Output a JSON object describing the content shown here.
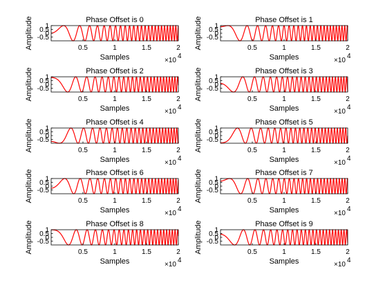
{
  "chart_data": [
    {
      "type": "line",
      "title": "Phase Offset is 0",
      "xlabel": "Samples",
      "ylabel": "Amplitude",
      "xlim": [
        0,
        20000
      ],
      "ylim": [
        -1,
        1
      ],
      "xticks": [
        5000,
        10000,
        15000,
        20000
      ],
      "xtick_labels": [
        "0.5",
        "1",
        "1.5",
        "2"
      ],
      "x_multiplier": "×10",
      "x_multiplier_exp": "4",
      "yticks": [
        1,
        0.5,
        0,
        -0.5
      ],
      "ytick_labels": [
        "1",
        "0.5",
        "0",
        "-0.5"
      ],
      "series": [
        {
          "color": "#ff0000",
          "signal": "linear chirp sin(2*pi*f(t)*t + phase), phase = 0",
          "phase": 0,
          "n_samples": 20000
        }
      ],
      "grid": false
    },
    {
      "type": "line",
      "title": "Phase Offset is 1",
      "xlabel": "Samples",
      "ylabel": "Amplitude",
      "xlim": [
        0,
        20000
      ],
      "ylim": [
        -1,
        1
      ],
      "xticks": [
        5000,
        10000,
        15000,
        20000
      ],
      "xtick_labels": [
        "0.5",
        "1",
        "1.5",
        "2"
      ],
      "x_multiplier": "×10",
      "x_multiplier_exp": "4",
      "yticks": [
        1,
        0.5,
        0,
        -0.5
      ],
      "ytick_labels": [
        "1",
        "0.5",
        "0",
        "-0.5"
      ],
      "series": [
        {
          "color": "#ff0000",
          "phase": 1,
          "n_samples": 20000
        }
      ],
      "grid": false
    },
    {
      "type": "line",
      "title": "Phase Offset is 2",
      "xlabel": "Samples",
      "ylabel": "Amplitude",
      "xlim": [
        0,
        20000
      ],
      "ylim": [
        -1,
        1
      ],
      "xticks": [
        5000,
        10000,
        15000,
        20000
      ],
      "xtick_labels": [
        "0.5",
        "1",
        "1.5",
        "2"
      ],
      "x_multiplier": "×10",
      "x_multiplier_exp": "4",
      "yticks": [
        1,
        0.5,
        0,
        -0.5
      ],
      "ytick_labels": [
        "1",
        "0.5",
        "0",
        "-0.5"
      ],
      "series": [
        {
          "color": "#ff0000",
          "phase": 2,
          "n_samples": 20000
        }
      ],
      "grid": false
    },
    {
      "type": "line",
      "title": "Phase Offset is 3",
      "xlabel": "Samples",
      "ylabel": "Amplitude",
      "xlim": [
        0,
        20000
      ],
      "ylim": [
        -1,
        1
      ],
      "xticks": [
        5000,
        10000,
        15000,
        20000
      ],
      "xtick_labels": [
        "0.5",
        "1",
        "1.5",
        "2"
      ],
      "x_multiplier": "×10",
      "x_multiplier_exp": "4",
      "yticks": [
        1,
        0.5,
        0,
        -0.5
      ],
      "ytick_labels": [
        "1",
        "0.5",
        "0",
        "-0.5"
      ],
      "series": [
        {
          "color": "#ff0000",
          "phase": 3,
          "n_samples": 20000
        }
      ],
      "grid": false
    },
    {
      "type": "line",
      "title": "Phase Offset is 4",
      "xlabel": "Samples",
      "ylabel": "Amplitude",
      "xlim": [
        0,
        20000
      ],
      "ylim": [
        -1,
        1
      ],
      "xticks": [
        5000,
        10000,
        15000,
        20000
      ],
      "xtick_labels": [
        "0.5",
        "1",
        "1.5",
        "2"
      ],
      "x_multiplier": "×10",
      "x_multiplier_exp": "4",
      "yticks": [
        1,
        0.5,
        0,
        -0.5
      ],
      "ytick_labels": [
        "1",
        "0.5",
        "0",
        "-0.5"
      ],
      "series": [
        {
          "color": "#ff0000",
          "phase": 4,
          "n_samples": 20000
        }
      ],
      "grid": false
    },
    {
      "type": "line",
      "title": "Phase Offset is 5",
      "xlabel": "Samples",
      "ylabel": "Amplitude",
      "xlim": [
        0,
        20000
      ],
      "ylim": [
        -1,
        1
      ],
      "xticks": [
        5000,
        10000,
        15000,
        20000
      ],
      "xtick_labels": [
        "0.5",
        "1",
        "1.5",
        "2"
      ],
      "x_multiplier": "×10",
      "x_multiplier_exp": "4",
      "yticks": [
        1,
        0.5,
        0,
        -0.5
      ],
      "ytick_labels": [
        "1",
        "0.5",
        "0",
        "-0.5"
      ],
      "series": [
        {
          "color": "#ff0000",
          "phase": 5,
          "n_samples": 20000
        }
      ],
      "grid": false
    },
    {
      "type": "line",
      "title": "Phase Offset is 6",
      "xlabel": "Samples",
      "ylabel": "Amplitude",
      "xlim": [
        0,
        20000
      ],
      "ylim": [
        -1,
        1
      ],
      "xticks": [
        5000,
        10000,
        15000,
        20000
      ],
      "xtick_labels": [
        "0.5",
        "1",
        "1.5",
        "2"
      ],
      "x_multiplier": "×10",
      "x_multiplier_exp": "4",
      "yticks": [
        1,
        0.5,
        0,
        -0.5
      ],
      "ytick_labels": [
        "1",
        "0.5",
        "0",
        "-0.5"
      ],
      "series": [
        {
          "color": "#ff0000",
          "phase": 6,
          "n_samples": 20000
        }
      ],
      "grid": false
    },
    {
      "type": "line",
      "title": "Phase Offset is 7",
      "xlabel": "Samples",
      "ylabel": "Amplitude",
      "xlim": [
        0,
        20000
      ],
      "ylim": [
        -1,
        1
      ],
      "xticks": [
        5000,
        10000,
        15000,
        20000
      ],
      "xtick_labels": [
        "0.5",
        "1",
        "1.5",
        "2"
      ],
      "x_multiplier": "×10",
      "x_multiplier_exp": "4",
      "yticks": [
        1,
        0.5,
        0,
        -0.5
      ],
      "ytick_labels": [
        "1",
        "0.5",
        "0",
        "-0.5"
      ],
      "series": [
        {
          "color": "#ff0000",
          "phase": 7,
          "n_samples": 20000
        }
      ],
      "grid": false
    },
    {
      "type": "line",
      "title": "Phase Offset is 8",
      "xlabel": "Samples",
      "ylabel": "Amplitude",
      "xlim": [
        0,
        20000
      ],
      "ylim": [
        -1,
        1
      ],
      "xticks": [
        5000,
        10000,
        15000,
        20000
      ],
      "xtick_labels": [
        "0.5",
        "1",
        "1.5",
        "2"
      ],
      "x_multiplier": "×10",
      "x_multiplier_exp": "4",
      "yticks": [
        1,
        0.5,
        0,
        -0.5
      ],
      "ytick_labels": [
        "1",
        "0.5",
        "0",
        "-0.5"
      ],
      "series": [
        {
          "color": "#ff0000",
          "phase": 8,
          "n_samples": 20000
        }
      ],
      "grid": false
    },
    {
      "type": "line",
      "title": "Phase Offset is 9",
      "xlabel": "Samples",
      "ylabel": "Amplitude",
      "xlim": [
        0,
        20000
      ],
      "ylim": [
        -1,
        1
      ],
      "xticks": [
        5000,
        10000,
        15000,
        20000
      ],
      "xtick_labels": [
        "0.5",
        "1",
        "1.5",
        "2"
      ],
      "x_multiplier": "×10",
      "x_multiplier_exp": "4",
      "yticks": [
        1,
        0.5,
        0,
        -0.5
      ],
      "ytick_labels": [
        "1",
        "0.5",
        "0",
        "-0.5"
      ],
      "series": [
        {
          "color": "#ff0000",
          "phase": 9,
          "n_samples": 20000
        }
      ],
      "grid": false
    }
  ]
}
